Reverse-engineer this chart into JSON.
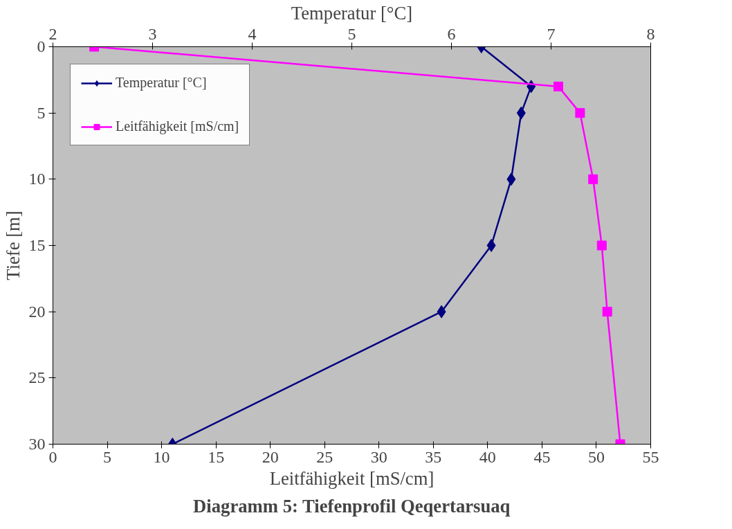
{
  "chart_data": {
    "type": "line",
    "title": "Diagramm 5: Tiefenprofil Qeqertarsuaq",
    "xlabel": "Leitfähigkeit [mS/cm]",
    "x2label": "Temperatur [°C]",
    "ylabel": "Tiefe [m]",
    "xlim": [
      0,
      55
    ],
    "xticks": [
      0,
      5,
      10,
      15,
      20,
      25,
      30,
      35,
      40,
      45,
      50,
      55
    ],
    "x2lim": [
      2,
      8
    ],
    "x2ticks": [
      2,
      3,
      4,
      5,
      6,
      7,
      8
    ],
    "ylim": [
      30,
      0
    ],
    "yticks": [
      0,
      5,
      10,
      15,
      20,
      25,
      30
    ],
    "grid": false,
    "legend": "top left",
    "series": [
      {
        "name": "Temperatur [°C]",
        "color": "#000080",
        "axis": "x2",
        "marker": "diamond",
        "x": [
          6.3,
          6.8,
          6.7,
          6.6,
          6.4,
          5.9,
          3.2
        ],
        "values": [
          0,
          3,
          5,
          10,
          15,
          20,
          30
        ]
      },
      {
        "name": "Leitfähigkeit [mS/cm]",
        "color": "#ff00ff",
        "marker": "square",
        "x": [
          3.8,
          46.5,
          48.5,
          49.7,
          50.5,
          51.0,
          52.2
        ],
        "values": [
          0,
          3,
          5,
          10,
          15,
          20,
          30
        ]
      }
    ]
  }
}
